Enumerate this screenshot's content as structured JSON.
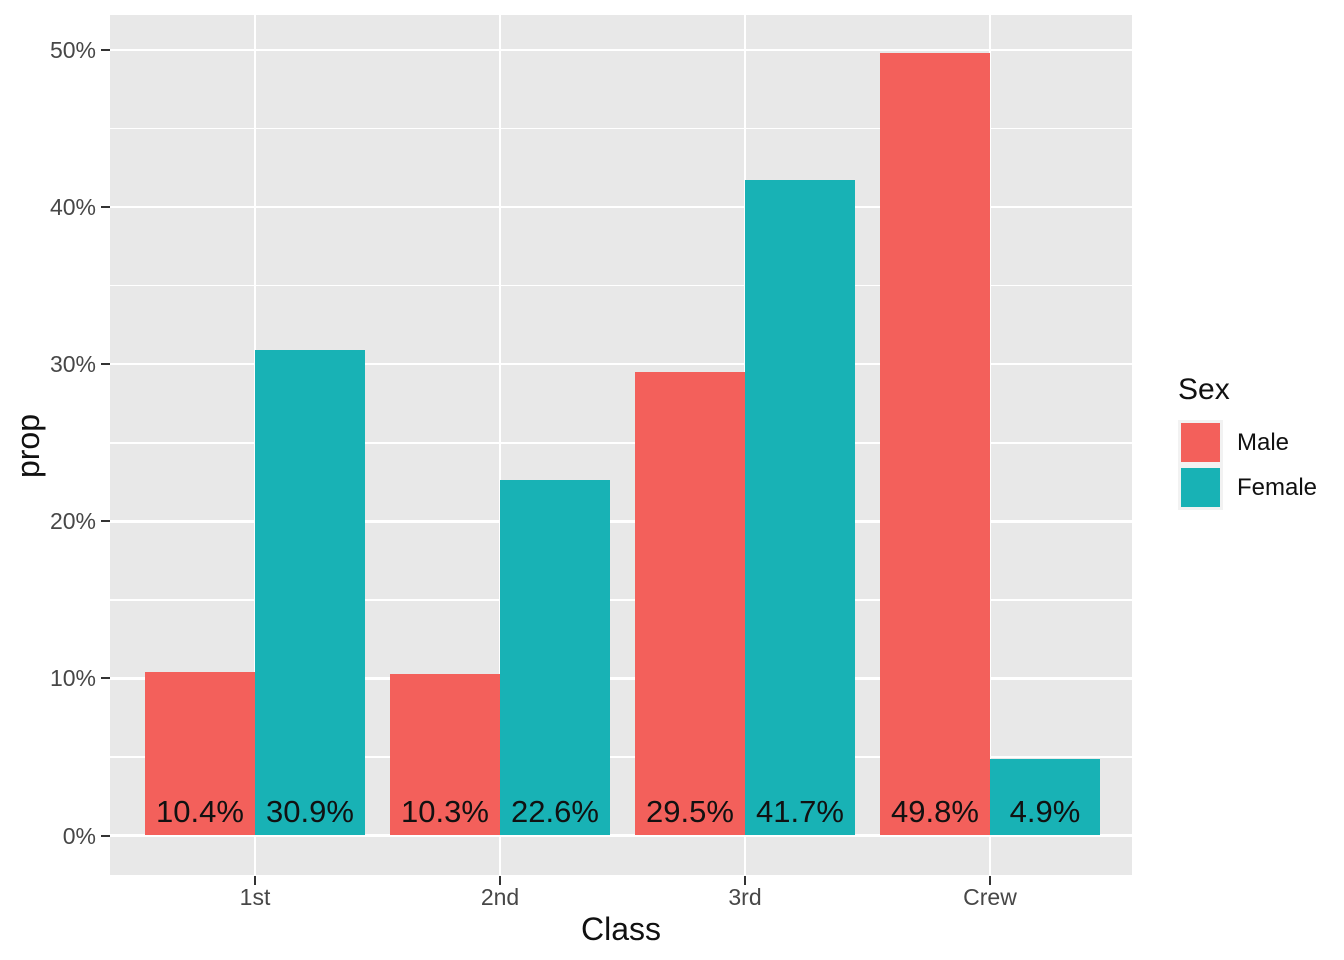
{
  "chart_data": {
    "type": "bar",
    "title": "",
    "bar_mode": "dodge",
    "categories": [
      "1st",
      "2nd",
      "3rd",
      "Crew"
    ],
    "series": [
      {
        "name": "Male",
        "color": "#F3605B",
        "values": [
          10.4,
          10.3,
          29.5,
          49.8
        ],
        "bar_labels": [
          "10.4%",
          "10.3%",
          "29.5%",
          "49.8%"
        ]
      },
      {
        "name": "Female",
        "color": "#18B2B5",
        "values": [
          30.9,
          22.6,
          41.7,
          4.9
        ],
        "bar_labels": [
          "30.9%",
          "22.6%",
          "41.7%",
          "4.9%"
        ]
      }
    ],
    "xlabel": "Class",
    "ylabel": "prop",
    "ylim": [
      0,
      50
    ],
    "y_axis": {
      "tick_labels": [
        "0%",
        "10%",
        "20%",
        "30%",
        "40%",
        "50%"
      ],
      "tick_values": [
        0,
        10,
        20,
        30,
        40,
        50
      ],
      "minor_values": [
        5,
        15,
        25,
        35,
        45
      ]
    },
    "legend": {
      "title": "Sex",
      "position": "right"
    },
    "layout": {
      "grid": "on",
      "panel_bg": "#E8E8E8",
      "grid_color": "#FFFFFF",
      "axis_text_color": "#474747",
      "tick_mark_color": "#333333"
    }
  }
}
